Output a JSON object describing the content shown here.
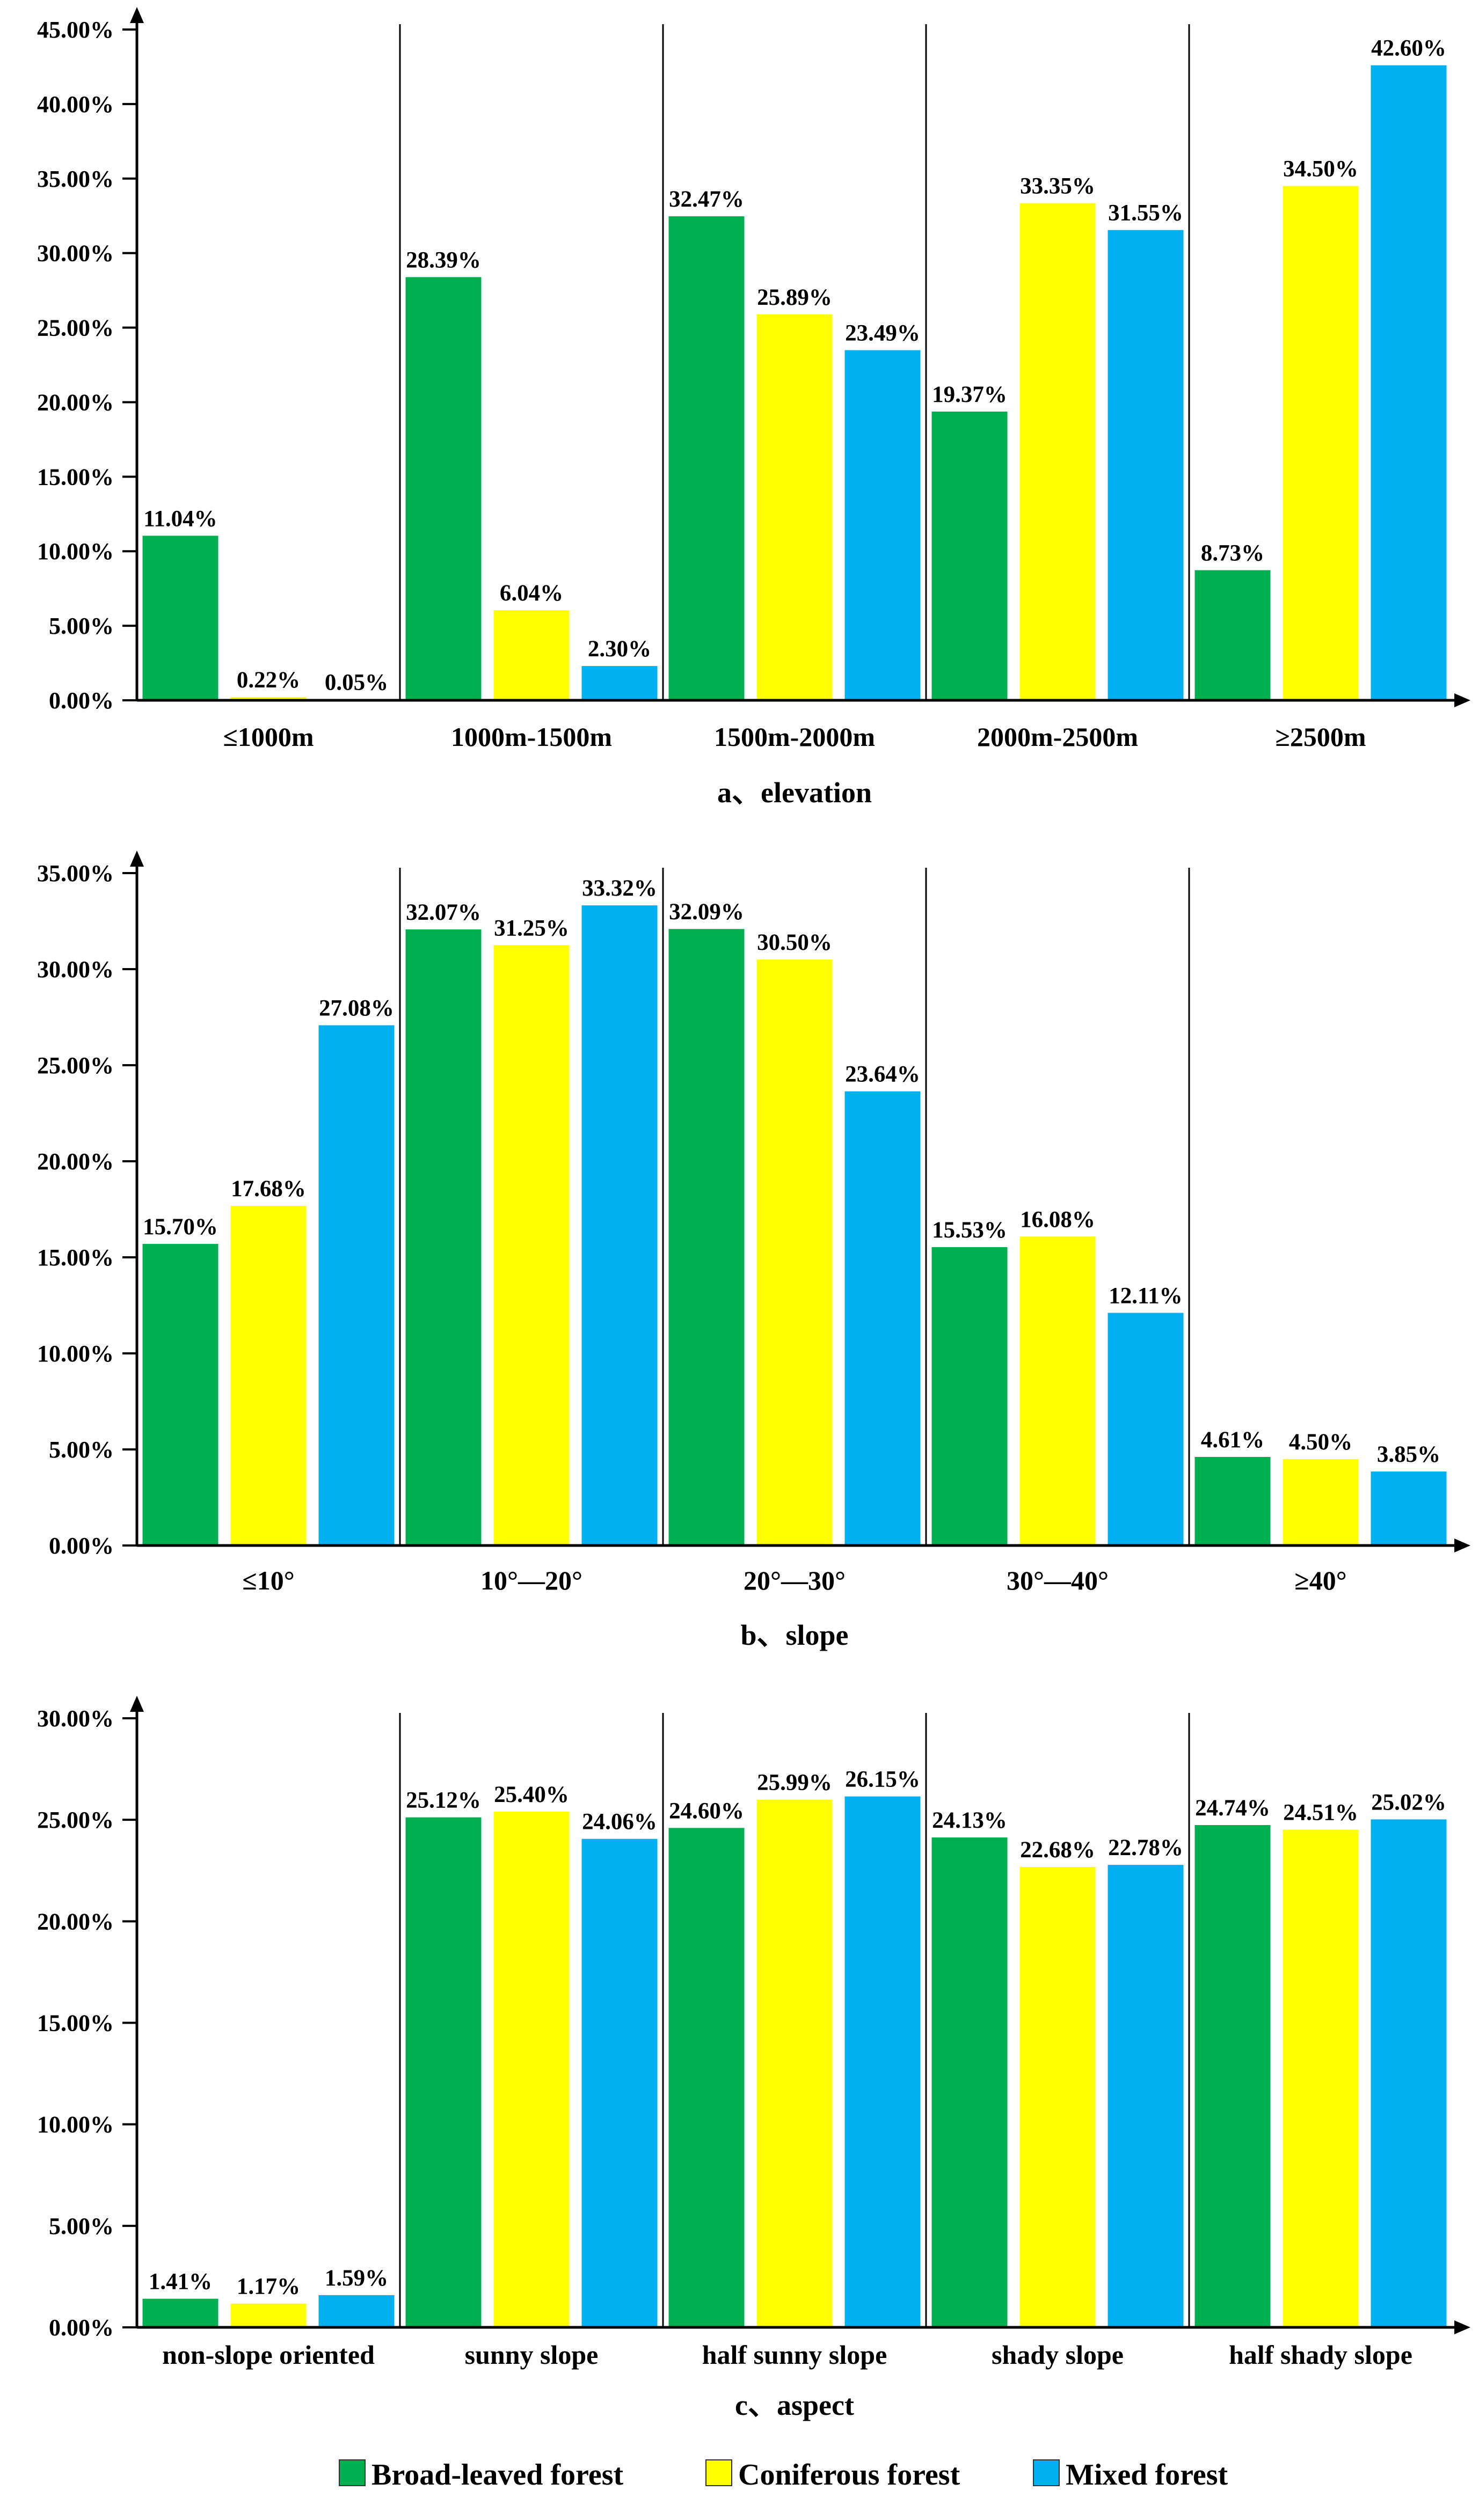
{
  "colors": {
    "broad_leaved": "#00b050",
    "coniferous": "#ffff00",
    "mixed": "#00b0f0",
    "axis": "#000000",
    "background": "#ffffff"
  },
  "legend": {
    "items": [
      {
        "label": "Broad-leaved forest",
        "color": "#00b050"
      },
      {
        "label": "Coniferous forest",
        "color": "#ffff00"
      },
      {
        "label": "Mixed forest",
        "color": "#00b0f0"
      }
    ]
  },
  "chart_data": [
    {
      "type": "bar",
      "title": "a、elevation",
      "xlabel": "",
      "ylabel": "",
      "ylim": [
        0,
        45
      ],
      "yticks": [
        "0.00%",
        "5.00%",
        "10.00%",
        "15.00%",
        "20.00%",
        "25.00%",
        "30.00%",
        "35.00%",
        "40.00%",
        "45.00%"
      ],
      "categories": [
        "≤1000m",
        "1000m-1500m",
        "1500m-2000m",
        "2000m-2500m",
        "≥2500m"
      ],
      "series": [
        {
          "name": "Broad-leaved forest",
          "values": [
            11.04,
            28.39,
            32.47,
            19.37,
            8.73
          ],
          "labels": [
            "11.04%",
            "28.39%",
            "32.47%",
            "19.37%",
            "8.73%"
          ]
        },
        {
          "name": "Coniferous forest",
          "values": [
            0.22,
            6.04,
            25.89,
            33.35,
            34.5
          ],
          "labels": [
            "0.22%",
            "6.04%",
            "25.89%",
            "33.35%",
            "34.50%"
          ]
        },
        {
          "name": "Mixed forest",
          "values": [
            0.05,
            2.3,
            23.49,
            31.55,
            42.6
          ],
          "labels": [
            "0.05%",
            "2.30%",
            "23.49%",
            "31.55%",
            "42.60%"
          ]
        }
      ]
    },
    {
      "type": "bar",
      "title": "b、slope",
      "xlabel": "",
      "ylabel": "",
      "ylim": [
        0,
        35
      ],
      "yticks": [
        "0.00%",
        "5.00%",
        "10.00%",
        "15.00%",
        "20.00%",
        "25.00%",
        "30.00%",
        "35.00%"
      ],
      "categories": [
        "≤10°",
        "10°—20°",
        "20°—30°",
        "30°—40°",
        "≥40°"
      ],
      "series": [
        {
          "name": "Broad-leaved forest",
          "values": [
            15.7,
            32.07,
            32.09,
            15.53,
            4.61
          ],
          "labels": [
            "15.70%",
            "32.07%",
            "32.09%",
            "15.53%",
            "4.61%"
          ]
        },
        {
          "name": "Coniferous forest",
          "values": [
            17.68,
            31.25,
            30.5,
            16.08,
            4.5
          ],
          "labels": [
            "17.68%",
            "31.25%",
            "30.50%",
            "16.08%",
            "4.50%"
          ]
        },
        {
          "name": "Mixed forest",
          "values": [
            27.08,
            33.32,
            23.64,
            12.11,
            3.85
          ],
          "labels": [
            "27.08%",
            "33.32%",
            "23.64%",
            "12.11%",
            "3.85%"
          ]
        }
      ]
    },
    {
      "type": "bar",
      "title": "c、aspect",
      "xlabel": "",
      "ylabel": "",
      "ylim": [
        0,
        30
      ],
      "yticks": [
        "0.00%",
        "5.00%",
        "10.00%",
        "15.00%",
        "20.00%",
        "25.00%",
        "30.00%"
      ],
      "categories": [
        "non-slope oriented",
        "sunny slope",
        "half sunny slope",
        "shady slope",
        "half shady slope"
      ],
      "series": [
        {
          "name": "Broad-leaved forest",
          "values": [
            1.41,
            25.12,
            24.6,
            24.13,
            24.74
          ],
          "labels": [
            "1.41%",
            "25.12%",
            "24.60%",
            "24.13%",
            "24.74%"
          ]
        },
        {
          "name": "Coniferous forest",
          "values": [
            1.17,
            25.4,
            25.99,
            22.68,
            24.51
          ],
          "labels": [
            "1.17%",
            "25.40%",
            "25.99%",
            "22.68%",
            "24.51%"
          ]
        },
        {
          "name": "Mixed forest",
          "values": [
            1.59,
            24.06,
            26.15,
            22.78,
            25.02
          ],
          "labels": [
            "1.59%",
            "24.06%",
            "26.15%",
            "22.78%",
            "25.02%"
          ]
        }
      ]
    }
  ]
}
